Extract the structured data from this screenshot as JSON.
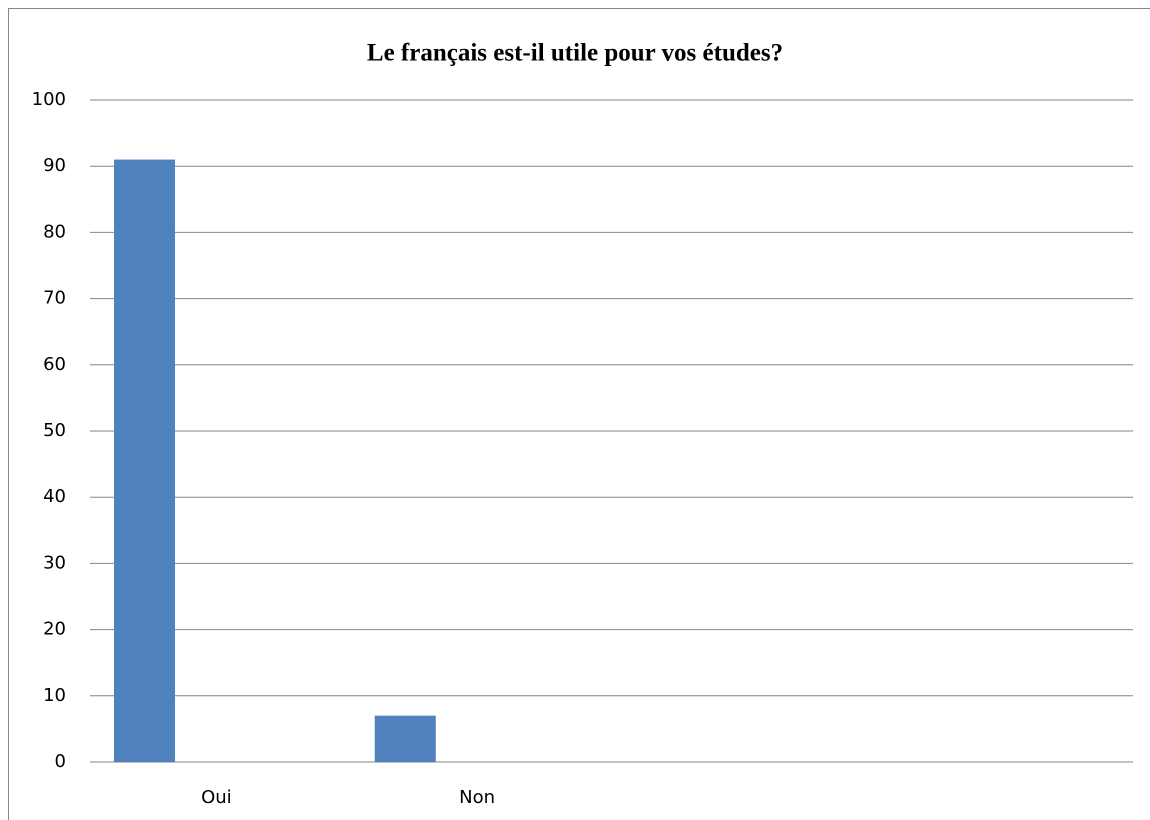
{
  "chart_data": {
    "type": "bar",
    "title": "Le français est-il utile pour vos études?",
    "categories": [
      "Oui",
      "Non",
      null,
      null
    ],
    "values": [
      91,
      7,
      null,
      null
    ],
    "color": "#4f81bd",
    "ylim": [
      0,
      100
    ],
    "yticks": [
      0,
      10,
      20,
      30,
      40,
      50,
      60,
      70,
      80,
      90,
      100
    ],
    "grid": true
  }
}
